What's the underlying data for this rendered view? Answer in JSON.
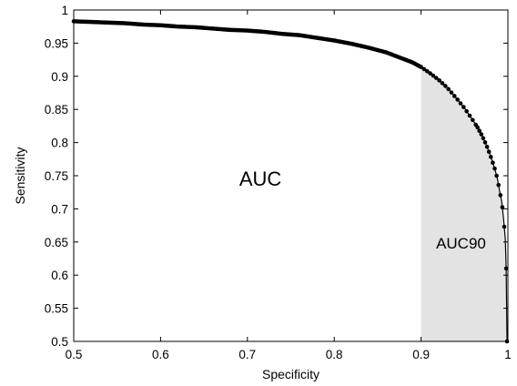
{
  "chart_data": {
    "type": "line",
    "xlabel": "Specificity",
    "ylabel": "Sensitivity",
    "xlim": [
      0.5,
      1.0
    ],
    "ylim": [
      0.5,
      1.0
    ],
    "xticks": [
      "0.5",
      "0.6",
      "0.7",
      "0.8",
      "0.9",
      "1"
    ],
    "yticks": [
      "0.5",
      "0.55",
      "0.6",
      "0.65",
      "0.7",
      "0.75",
      "0.8",
      "0.85",
      "0.9",
      "0.95",
      "1"
    ],
    "grid": false,
    "shaded_region": {
      "x_from": 0.9,
      "x_to": 1.0,
      "color": "#e3e3e3"
    },
    "annotations": [
      {
        "text": "AUC",
        "x": 0.715,
        "y": 0.735
      },
      {
        "text": "AUC90",
        "x": 0.946,
        "y": 0.64
      }
    ],
    "series": [
      {
        "x": [
          0.5,
          0.52,
          0.54,
          0.56,
          0.58,
          0.6,
          0.62,
          0.64,
          0.66,
          0.68,
          0.7,
          0.72,
          0.74,
          0.76,
          0.78,
          0.8,
          0.82,
          0.84,
          0.86,
          0.87,
          0.88,
          0.89,
          0.9,
          0.91,
          0.92,
          0.93,
          0.94,
          0.95,
          0.96,
          0.965,
          0.97,
          0.975,
          0.98,
          0.985,
          0.988,
          0.99,
          0.993,
          0.995,
          0.997,
          0.998
        ],
        "y": [
          0.983,
          0.982,
          0.981,
          0.98,
          0.978,
          0.977,
          0.975,
          0.974,
          0.972,
          0.97,
          0.969,
          0.967,
          0.964,
          0.962,
          0.958,
          0.954,
          0.949,
          0.943,
          0.936,
          0.931,
          0.926,
          0.921,
          0.914,
          0.905,
          0.895,
          0.883,
          0.868,
          0.852,
          0.833,
          0.823,
          0.811,
          0.797,
          0.78,
          0.76,
          0.745,
          0.73,
          0.71,
          0.685,
          0.655,
          0.61
        ],
        "tail": {
          "x": [
            0.997,
            0.998,
            0.999,
            1.0
          ],
          "y": [
            0.655,
            0.61,
            0.5,
            0.5
          ]
        }
      }
    ]
  }
}
